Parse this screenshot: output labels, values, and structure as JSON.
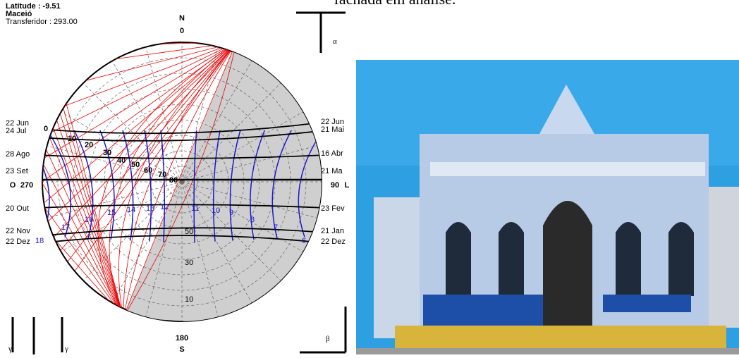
{
  "header_note": "fachada em análise.",
  "info": {
    "latitude": "Latitude : -9.51",
    "city": "Maceió",
    "protractor": "Transferidor : 293.00"
  },
  "compass": {
    "north": "N",
    "north_deg": "0",
    "south": "S",
    "south_deg": "180",
    "west": "O",
    "west_deg": "270",
    "east": "L",
    "east_deg": "90"
  },
  "dates_left": [
    "22 Jun",
    "24 Jul",
    "28 Ago",
    "23 Set",
    "20 Out",
    "22 Nov",
    "22 Dez"
  ],
  "dates_right": [
    "22 Jun",
    "21 Mai",
    "16 Abr",
    "21 Ma",
    "23 Fev",
    "21 Jan",
    "22 Dez"
  ],
  "hours": [
    "18",
    "17",
    "16",
    "15",
    "14",
    "13",
    "12",
    "11",
    "10",
    "9",
    "8",
    "7",
    "6"
  ],
  "altitudes_left": [
    "0",
    "10",
    "20",
    "30",
    "40",
    "50",
    "60",
    "70",
    "80"
  ],
  "altitudes_center": [
    "50",
    "30",
    "10"
  ],
  "symbols": {
    "alpha": "α",
    "beta": "β",
    "gamma_left": "γ",
    "gamma_right": "γ"
  }
}
